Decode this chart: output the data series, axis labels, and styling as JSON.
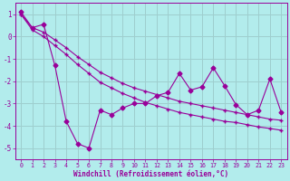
{
  "xlabel": "Windchill (Refroidissement éolien,°C)",
  "background_color": "#b2ecec",
  "grid_color": "#9ecece",
  "line_color": "#990099",
  "xlim": [
    -0.5,
    23.5
  ],
  "ylim": [
    -5.5,
    1.5
  ],
  "yticks": [
    1,
    0,
    -1,
    -2,
    -3,
    -4,
    -5
  ],
  "xticks": [
    0,
    1,
    2,
    3,
    4,
    5,
    6,
    7,
    8,
    9,
    10,
    11,
    12,
    13,
    14,
    15,
    16,
    17,
    18,
    19,
    20,
    21,
    22,
    23
  ],
  "series1_x": [
    0,
    1,
    2,
    3,
    4,
    5,
    6,
    7,
    8,
    9,
    10,
    11,
    12,
    13,
    14,
    15,
    16,
    17,
    18,
    19,
    20,
    21,
    22,
    23
  ],
  "series1_y": [
    1.0,
    0.4,
    0.2,
    -0.15,
    -0.5,
    -0.9,
    -1.25,
    -1.6,
    -1.85,
    -2.1,
    -2.3,
    -2.45,
    -2.6,
    -2.75,
    -2.9,
    -3.0,
    -3.1,
    -3.2,
    -3.3,
    -3.4,
    -3.5,
    -3.6,
    -3.7,
    -3.75
  ],
  "series2_x": [
    0,
    1,
    2,
    3,
    4,
    5,
    6,
    7,
    8,
    9,
    10,
    11,
    12,
    13,
    14,
    15,
    16,
    17,
    18,
    19,
    20,
    21,
    22,
    23
  ],
  "series2_y": [
    1.0,
    0.3,
    0.0,
    -0.4,
    -0.8,
    -1.25,
    -1.65,
    -2.05,
    -2.3,
    -2.55,
    -2.75,
    -2.95,
    -3.1,
    -3.25,
    -3.4,
    -3.5,
    -3.6,
    -3.7,
    -3.8,
    -3.85,
    -3.95,
    -4.05,
    -4.12,
    -4.2
  ],
  "series3_x": [
    0,
    1,
    2,
    3,
    4,
    5,
    6,
    7,
    8,
    9,
    10,
    11,
    12,
    13,
    14,
    15,
    16,
    17,
    18,
    19,
    20,
    21,
    22,
    23
  ],
  "series3_y": [
    1.1,
    0.4,
    0.55,
    -1.3,
    -3.8,
    -4.8,
    -5.0,
    -3.3,
    -3.5,
    -3.2,
    -3.0,
    -3.0,
    -2.65,
    -2.5,
    -1.65,
    -2.4,
    -2.25,
    -1.4,
    -2.2,
    -3.05,
    -3.5,
    -3.3,
    -1.9,
    -3.4
  ]
}
